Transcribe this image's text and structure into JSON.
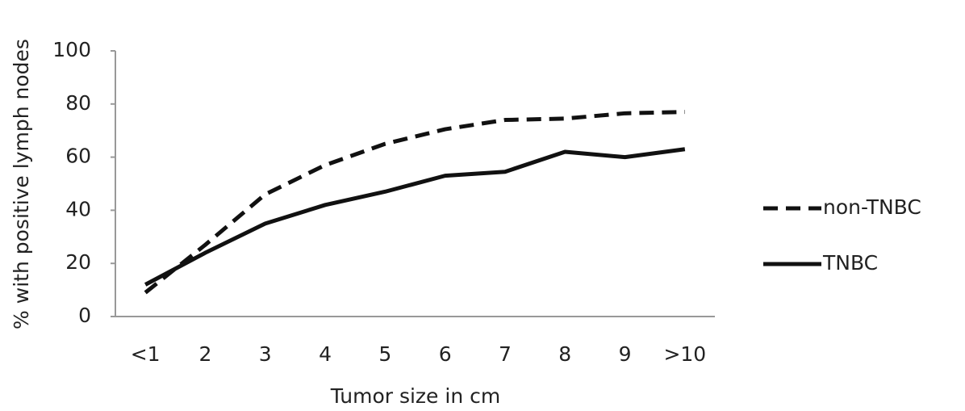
{
  "chart_data": {
    "type": "line",
    "x_label": "Tumor size in cm",
    "y_label": "% with positive lymph nodes",
    "categories": [
      "<1",
      "2",
      "3",
      "4",
      "5",
      "6",
      "7",
      "8",
      "9",
      ">10"
    ],
    "series": [
      {
        "name": "non-TNBC",
        "color": "#111111",
        "dash": true,
        "values": [
          9,
          27,
          46,
          57,
          65,
          70.5,
          74,
          74.5,
          76.5,
          77
        ]
      },
      {
        "name": "TNBC",
        "color": "#111111",
        "dash": false,
        "values": [
          12,
          24,
          35,
          42,
          47,
          53,
          54.5,
          62,
          60,
          63
        ]
      }
    ],
    "ylim": [
      0,
      100
    ],
    "yticks": [
      0,
      20,
      40,
      60,
      80,
      100
    ],
    "grid": false,
    "legend": "right"
  }
}
